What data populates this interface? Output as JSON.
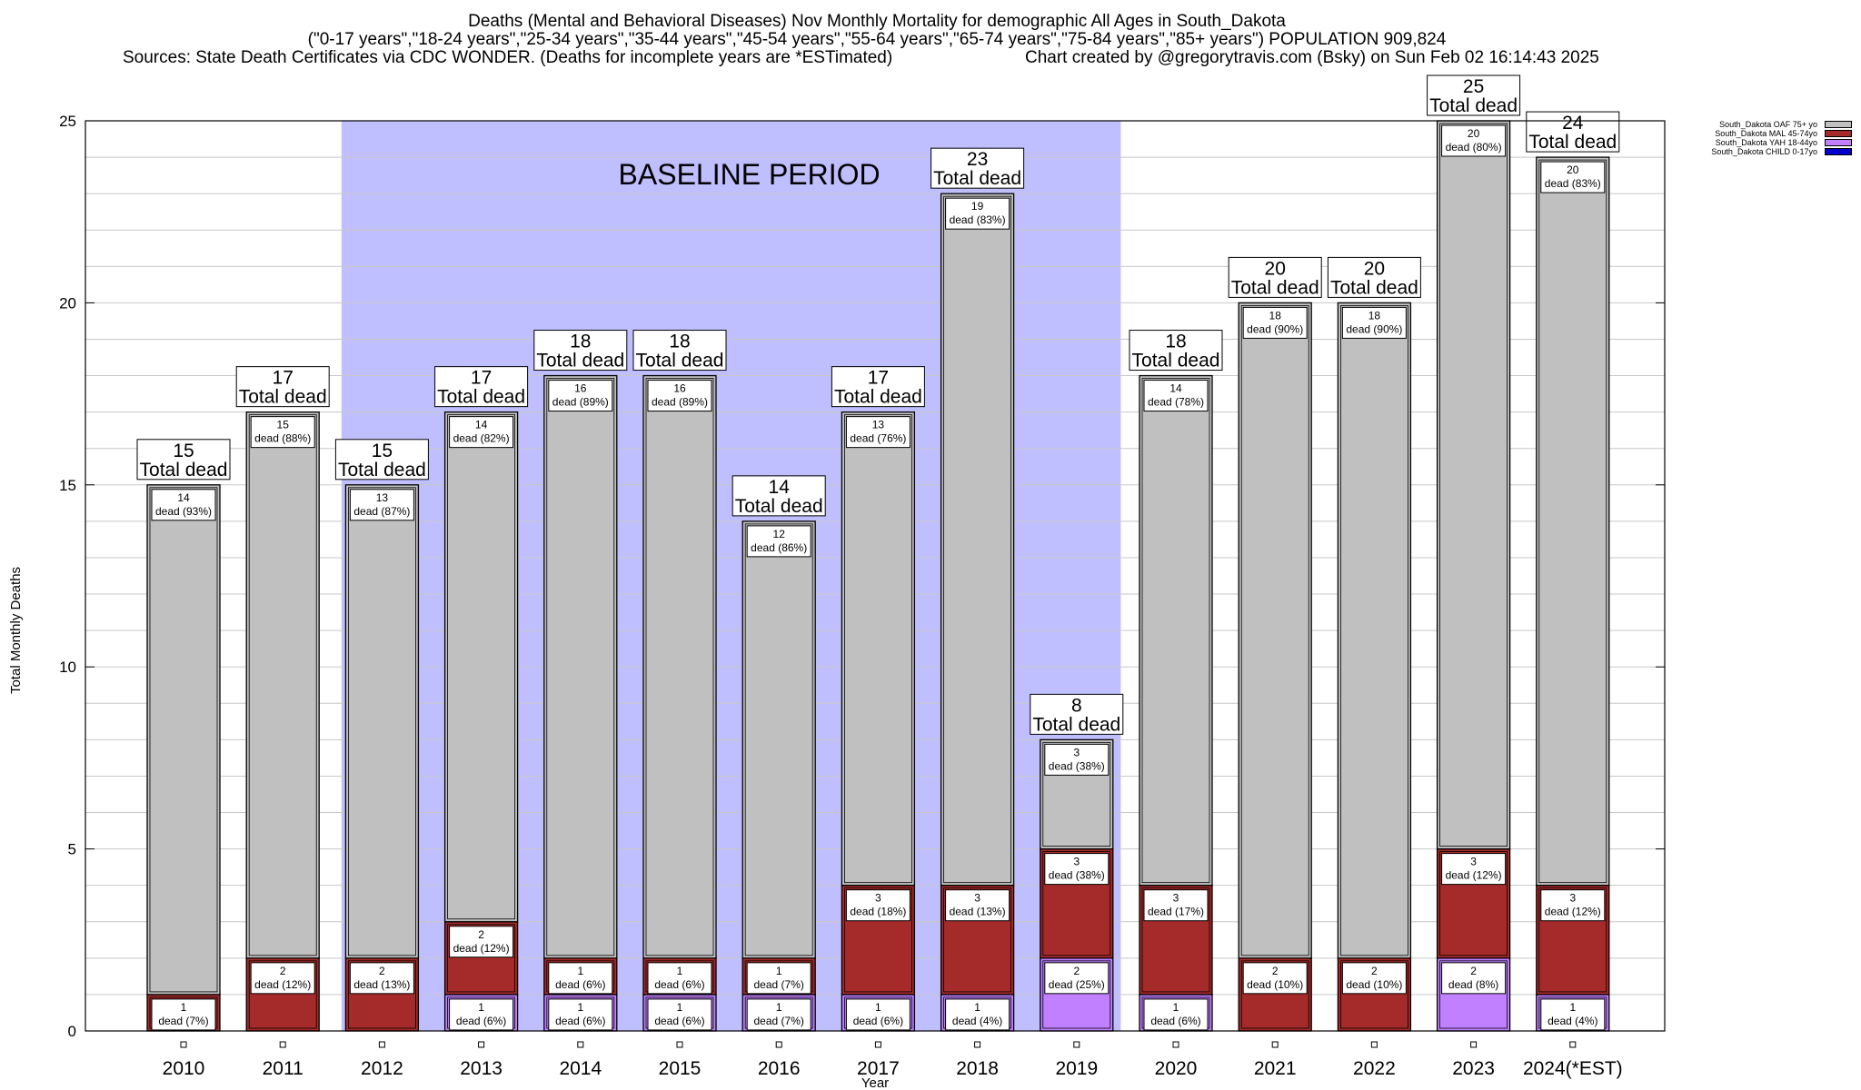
{
  "header": {
    "title": "Deaths (Mental and Behavioral Diseases) Nov Monthly Mortality for demographic All Ages in South_Dakota",
    "subtitle": "(\"0-17 years\",\"18-24 years\",\"25-34 years\",\"35-44 years\",\"45-54 years\",\"55-64 years\",\"65-74 years\",\"75-84 years\",\"85+ years\") POPULATION 909,824",
    "sources": "Sources: State Death Certificates via CDC WONDER. (Deaths for incomplete years are *ESTimated)",
    "credit": "Chart created by @gregorytravis.com (Bsky) on Sun Feb 02 16:14:43 2025"
  },
  "chart_data": {
    "type": "bar",
    "stacked": true,
    "xlabel": "Year",
    "ylabel": "Total Monthly Deaths",
    "ylim": [
      0,
      25
    ],
    "yticks": [
      0,
      5,
      10,
      15,
      20,
      25
    ],
    "grid": true,
    "baseline_label": "BASELINE PERIOD",
    "baseline_range": [
      "2012",
      "2019"
    ],
    "legend_position": "top-right",
    "total_suffix": "Total dead",
    "categories": [
      "2010",
      "2011",
      "2012",
      "2013",
      "2014",
      "2015",
      "2016",
      "2017",
      "2018",
      "2019",
      "2020",
      "2021",
      "2022",
      "2023",
      "2024(*EST)"
    ],
    "totals": [
      15,
      17,
      15,
      17,
      18,
      18,
      14,
      17,
      23,
      8,
      18,
      20,
      20,
      25,
      24
    ],
    "series": [
      {
        "name": "South_Dakota CHILD 0-17yo",
        "color": "#0000cc",
        "values": [
          0,
          0,
          0,
          0,
          0,
          0,
          0,
          0,
          0,
          0,
          0,
          0,
          0,
          0,
          0
        ],
        "labels": [
          "",
          "",
          "",
          "",
          "",
          "",
          "",
          "",
          "",
          "",
          "",
          "",
          "",
          "",
          ""
        ]
      },
      {
        "name": "South_Dakota YAH 18-44yo",
        "color": "#c080ff",
        "values": [
          0,
          0,
          0,
          1,
          1,
          1,
          1,
          1,
          1,
          2,
          1,
          0,
          0,
          2,
          1
        ],
        "labels": [
          "",
          "",
          "",
          "dead (6%)",
          "dead (6%)",
          "dead (6%)",
          "dead (7%)",
          "dead (6%)",
          "dead (4%)",
          "dead (25%)",
          "dead (6%)",
          "",
          "",
          "dead (8%)",
          "dead (4%)"
        ]
      },
      {
        "name": "South_Dakota MAL 45-74yo",
        "color": "#a52a2a",
        "values": [
          1,
          2,
          2,
          2,
          1,
          1,
          1,
          3,
          3,
          3,
          3,
          2,
          2,
          3,
          3
        ],
        "labels": [
          "dead (7%)",
          "dead (12%)",
          "dead (13%)",
          "dead (12%)",
          "dead (6%)",
          "dead (6%)",
          "dead (7%)",
          "dead (18%)",
          "dead (13%)",
          "dead (38%)",
          "dead (17%)",
          "dead (10%)",
          "dead (10%)",
          "dead (12%)",
          "dead (12%)"
        ]
      },
      {
        "name": "South_Dakota OAF 75+ yo",
        "color": "#c0c0c0",
        "values": [
          14,
          15,
          13,
          14,
          16,
          16,
          12,
          13,
          19,
          3,
          14,
          18,
          18,
          20,
          20
        ],
        "labels": [
          "dead (93%)",
          "dead (88%)",
          "dead (87%)",
          "dead (82%)",
          "dead (89%)",
          "dead (89%)",
          "dead (86%)",
          "dead (76%)",
          "dead (83%)",
          "dead (38%)",
          "dead (78%)",
          "dead (90%)",
          "dead (90%)",
          "dead (80%)",
          "dead (83%)"
        ]
      }
    ]
  }
}
